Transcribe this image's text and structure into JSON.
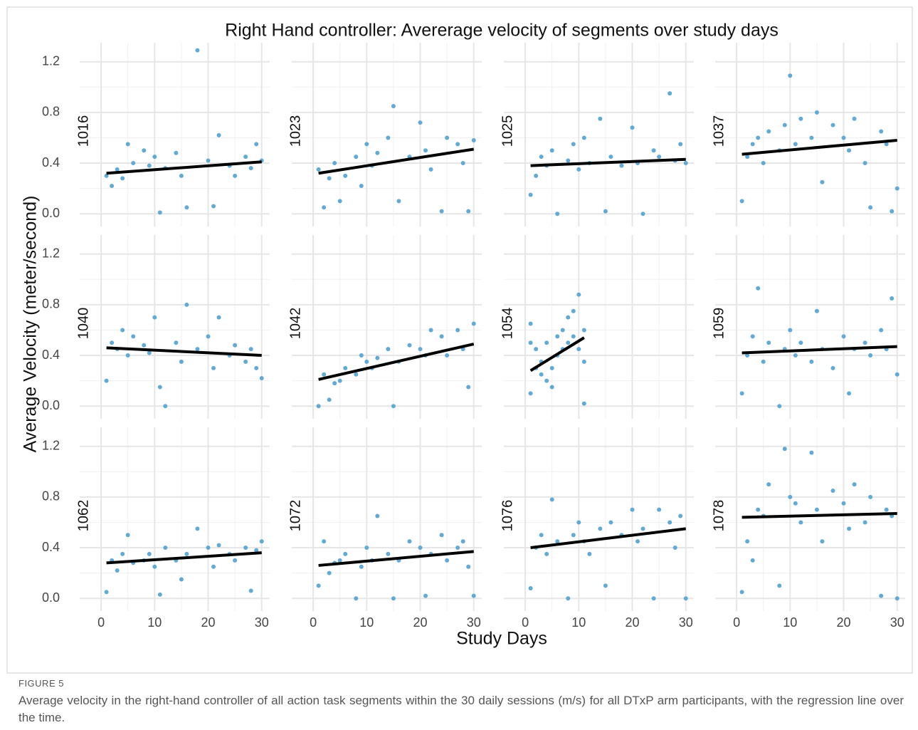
{
  "figure": {
    "title": "Right Hand controller: Avererage velocity of segments over study days",
    "x_label": "Study Days",
    "y_label": "Average Velocity (meter/second)",
    "xlim": [
      -4,
      31.5
    ],
    "xticks": [
      0,
      10,
      20,
      30
    ],
    "xminor": [
      5,
      15,
      25
    ],
    "ylim": [
      -0.1,
      1.35
    ],
    "yticks": [
      {
        "value": 0,
        "label": "0.0"
      },
      0.4,
      0.8,
      1.2
    ],
    "yminor": [
      0.2,
      0.6,
      1.0
    ],
    "point_color": "#62a9d3",
    "fit_color": "#000000",
    "grid": true
  },
  "chart_data": [
    {
      "type": "scatter",
      "label": "1016",
      "x": [
        1,
        2,
        3,
        4,
        5,
        6,
        8,
        9,
        10,
        11,
        12,
        14,
        15,
        16,
        18,
        20,
        21,
        22,
        24,
        25,
        27,
        28,
        29,
        30
      ],
      "y": [
        0.3,
        0.22,
        0.35,
        0.28,
        0.55,
        0.4,
        0.5,
        0.38,
        0.45,
        0.01,
        0.36,
        0.48,
        0.3,
        0.05,
        1.29,
        0.42,
        0.06,
        0.62,
        0.38,
        0.3,
        0.45,
        0.36,
        0.55,
        0.42
      ],
      "fit": {
        "x": [
          1,
          30
        ],
        "y": [
          0.32,
          0.41
        ]
      }
    },
    {
      "type": "scatter",
      "label": "1023",
      "x": [
        1,
        2,
        3,
        4,
        5,
        6,
        8,
        9,
        10,
        11,
        12,
        14,
        15,
        16,
        18,
        20,
        21,
        22,
        24,
        25,
        27,
        28,
        29,
        30
      ],
      "y": [
        0.35,
        0.05,
        0.28,
        0.4,
        0.1,
        0.3,
        0.45,
        0.22,
        0.55,
        0.38,
        0.48,
        0.6,
        0.85,
        0.1,
        0.45,
        0.72,
        0.5,
        0.35,
        0.02,
        0.6,
        0.55,
        0.4,
        0.02,
        0.58
      ],
      "fit": {
        "x": [
          1,
          30
        ],
        "y": [
          0.32,
          0.51
        ]
      }
    },
    {
      "type": "scatter",
      "label": "1025",
      "x": [
        1,
        2,
        3,
        4,
        5,
        6,
        8,
        9,
        10,
        11,
        12,
        14,
        15,
        16,
        18,
        20,
        21,
        22,
        24,
        25,
        27,
        28,
        29,
        30
      ],
      "y": [
        0.15,
        0.3,
        0.45,
        0.38,
        0.5,
        0.0,
        0.42,
        0.55,
        0.35,
        0.6,
        0.4,
        0.75,
        0.02,
        0.45,
        0.38,
        0.68,
        0.4,
        0.0,
        0.5,
        0.45,
        0.95,
        0.42,
        0.55,
        0.4
      ],
      "fit": {
        "x": [
          1,
          30
        ],
        "y": [
          0.38,
          0.43
        ]
      }
    },
    {
      "type": "scatter",
      "label": "1037",
      "x": [
        1,
        2,
        3,
        4,
        5,
        6,
        8,
        9,
        10,
        11,
        12,
        14,
        15,
        16,
        18,
        20,
        21,
        22,
        24,
        25,
        27,
        28,
        29,
        30
      ],
      "y": [
        0.1,
        0.45,
        0.55,
        0.6,
        0.4,
        0.65,
        0.5,
        0.7,
        1.09,
        0.55,
        0.75,
        0.6,
        0.8,
        0.25,
        0.7,
        0.6,
        0.5,
        0.75,
        0.4,
        0.05,
        0.65,
        0.55,
        0.02,
        0.2
      ],
      "fit": {
        "x": [
          1,
          30
        ],
        "y": [
          0.47,
          0.58
        ]
      }
    },
    {
      "type": "scatter",
      "label": "1040",
      "x": [
        1,
        2,
        3,
        4,
        5,
        6,
        8,
        9,
        10,
        11,
        12,
        14,
        15,
        16,
        18,
        20,
        21,
        22,
        24,
        25,
        27,
        28,
        29,
        30
      ],
      "y": [
        0.2,
        0.5,
        0.45,
        0.6,
        0.4,
        0.55,
        0.48,
        0.42,
        0.7,
        0.15,
        0.0,
        0.5,
        0.35,
        0.8,
        0.45,
        0.55,
        0.3,
        0.7,
        0.4,
        0.48,
        0.35,
        0.45,
        0.3,
        0.22
      ],
      "fit": {
        "x": [
          1,
          30
        ],
        "y": [
          0.46,
          0.4
        ]
      }
    },
    {
      "type": "scatter",
      "label": "1042",
      "x": [
        1,
        2,
        3,
        4,
        5,
        6,
        8,
        9,
        10,
        11,
        12,
        14,
        15,
        16,
        18,
        20,
        21,
        22,
        24,
        25,
        27,
        28,
        29,
        30
      ],
      "y": [
        0.0,
        0.25,
        0.05,
        0.18,
        0.2,
        0.3,
        0.25,
        0.4,
        0.35,
        0.3,
        0.38,
        0.45,
        0.0,
        0.35,
        0.48,
        0.45,
        0.4,
        0.6,
        0.55,
        0.4,
        0.6,
        0.45,
        0.15,
        0.65
      ],
      "fit": {
        "x": [
          1,
          30
        ],
        "y": [
          0.21,
          0.49
        ]
      }
    },
    {
      "type": "scatter",
      "label": "1054",
      "x": [
        1,
        1,
        2,
        2,
        3,
        3,
        4,
        4,
        5,
        5,
        6,
        6,
        7,
        7,
        8,
        8,
        9,
        9,
        10,
        10,
        11,
        11,
        11,
        1
      ],
      "y": [
        0.65,
        0.1,
        0.3,
        0.45,
        0.25,
        0.35,
        0.5,
        0.2,
        0.15,
        0.3,
        0.55,
        0.4,
        0.6,
        0.45,
        0.5,
        0.7,
        0.55,
        0.75,
        0.88,
        0.45,
        0.6,
        0.02,
        0.35,
        0.5
      ],
      "fit": {
        "x": [
          1,
          11
        ],
        "y": [
          0.28,
          0.54
        ]
      }
    },
    {
      "type": "scatter",
      "label": "1059",
      "x": [
        1,
        2,
        3,
        4,
        5,
        6,
        8,
        9,
        10,
        11,
        12,
        14,
        15,
        16,
        18,
        20,
        21,
        22,
        24,
        25,
        27,
        28,
        29,
        30
      ],
      "y": [
        0.1,
        0.4,
        0.55,
        0.93,
        0.35,
        0.5,
        0.0,
        0.45,
        0.6,
        0.4,
        0.5,
        0.35,
        0.75,
        0.45,
        0.3,
        0.55,
        0.1,
        0.45,
        0.5,
        0.4,
        0.6,
        0.45,
        0.85,
        0.25
      ],
      "fit": {
        "x": [
          1,
          30
        ],
        "y": [
          0.42,
          0.47
        ]
      }
    },
    {
      "type": "scatter",
      "label": "1062",
      "x": [
        1,
        2,
        3,
        4,
        5,
        6,
        8,
        9,
        10,
        11,
        12,
        14,
        15,
        16,
        18,
        20,
        21,
        22,
        24,
        25,
        27,
        28,
        29,
        30
      ],
      "y": [
        0.05,
        0.3,
        0.22,
        0.35,
        0.5,
        0.28,
        0.3,
        0.35,
        0.25,
        0.03,
        0.4,
        0.3,
        0.15,
        0.35,
        0.55,
        0.4,
        0.25,
        0.42,
        0.35,
        0.3,
        0.4,
        0.06,
        0.38,
        0.45
      ],
      "fit": {
        "x": [
          1,
          30
        ],
        "y": [
          0.28,
          0.36
        ]
      }
    },
    {
      "type": "scatter",
      "label": "1072",
      "x": [
        1,
        2,
        3,
        4,
        5,
        6,
        8,
        9,
        10,
        11,
        12,
        14,
        15,
        16,
        18,
        20,
        21,
        22,
        24,
        25,
        27,
        28,
        29,
        30
      ],
      "y": [
        0.1,
        0.45,
        0.2,
        0.28,
        0.3,
        0.35,
        0.0,
        0.25,
        0.4,
        0.3,
        0.65,
        0.35,
        0.0,
        0.3,
        0.45,
        0.4,
        0.02,
        0.35,
        0.5,
        0.3,
        0.4,
        0.45,
        0.25,
        0.02
      ],
      "fit": {
        "x": [
          1,
          30
        ],
        "y": [
          0.26,
          0.37
        ]
      }
    },
    {
      "type": "scatter",
      "label": "1076",
      "x": [
        1,
        2,
        3,
        4,
        5,
        6,
        8,
        9,
        10,
        11,
        12,
        14,
        15,
        16,
        18,
        20,
        21,
        22,
        24,
        25,
        27,
        28,
        29,
        30
      ],
      "y": [
        0.08,
        0.4,
        0.5,
        0.35,
        0.78,
        0.45,
        0.0,
        0.5,
        0.6,
        0.45,
        0.35,
        0.55,
        0.1,
        0.6,
        0.5,
        0.7,
        0.45,
        0.55,
        0.0,
        0.7,
        0.6,
        0.4,
        0.65,
        0.0
      ],
      "fit": {
        "x": [
          1,
          30
        ],
        "y": [
          0.4,
          0.55
        ]
      }
    },
    {
      "type": "scatter",
      "label": "1078",
      "x": [
        1,
        2,
        3,
        4,
        5,
        6,
        8,
        9,
        10,
        11,
        12,
        14,
        15,
        16,
        18,
        20,
        21,
        22,
        24,
        25,
        27,
        28,
        29,
        30
      ],
      "y": [
        0.05,
        0.45,
        0.3,
        0.7,
        0.65,
        0.9,
        0.1,
        1.18,
        0.8,
        0.75,
        0.6,
        1.15,
        0.7,
        0.45,
        0.85,
        0.75,
        0.55,
        0.9,
        0.6,
        0.8,
        0.02,
        0.7,
        0.65,
        0.0
      ],
      "fit": {
        "x": [
          1,
          30
        ],
        "y": [
          0.64,
          0.67
        ]
      }
    }
  ],
  "caption": {
    "label": "FIGURE 5",
    "text": "Average velocity in the right-hand controller of all action task segments within the 30 daily sessions (m/s) for all DTxP arm participants, with the regression line over the time."
  }
}
